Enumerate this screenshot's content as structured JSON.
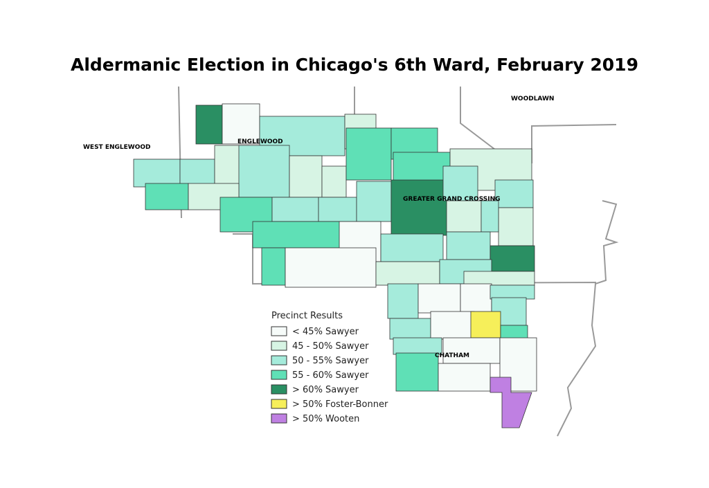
{
  "header": {
    "title": "Aldermanic Election in Chicago's 6th Ward, February 2019"
  },
  "places": [
    "WEST ENGLEWOOD",
    "ENGLEWOOD",
    "WOODLAWN",
    "GREATER GRAND CROSSING",
    "CHATHAM"
  ],
  "legend": {
    "title": "Precinct Results",
    "items": [
      {
        "label": "< 45% Sawyer",
        "color": "#f6fbf9"
      },
      {
        "label": "45 - 50% Sawyer",
        "color": "#d7f4e4"
      },
      {
        "label": "50 - 55% Sawyer",
        "color": "#a5ebdb"
      },
      {
        "label": "55 - 60% Sawyer",
        "color": "#5fe0b6"
      },
      {
        "label": "> 60% Sawyer",
        "color": "#2a8f63"
      },
      {
        "label": "> 50% Foster-Bonner",
        "color": "#f6ef5a"
      },
      {
        "label": "> 50% Wooten",
        "color": "#bf80e2"
      }
    ]
  }
}
